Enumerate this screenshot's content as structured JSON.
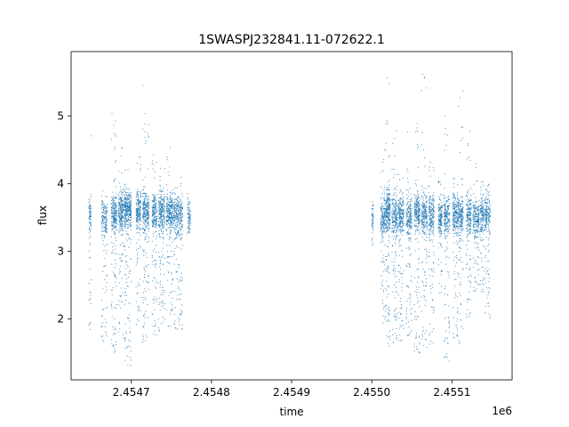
{
  "chart_data": {
    "type": "scatter",
    "title": "1SWASPJ232841.11-072622.1",
    "xlabel": "time",
    "ylabel": "flux",
    "x_offset_label": "1e6",
    "xlim": [
      2454625,
      2455175
    ],
    "ylim": [
      1.1,
      5.95
    ],
    "x_ticks": [
      {
        "value": 2454700,
        "label": "2.4547"
      },
      {
        "value": 2454800,
        "label": "2.4548"
      },
      {
        "value": 2454900,
        "label": "2.4549"
      },
      {
        "value": 2455000,
        "label": "2.4550"
      },
      {
        "value": 2455100,
        "label": "2.4551"
      }
    ],
    "y_ticks": [
      {
        "value": 2,
        "label": "2"
      },
      {
        "value": 3,
        "label": "3"
      },
      {
        "value": 4,
        "label": "4"
      },
      {
        "value": 5,
        "label": "5"
      }
    ],
    "grid": false,
    "marker_color": "#1f77b4",
    "series": [
      {
        "observation_groups": [
          {
            "x_start": 2454647,
            "x_end": 2454650,
            "y_mean": 3.52,
            "y_lo": 1.75,
            "y_hi": 4.75,
            "count": 90
          },
          {
            "x_start": 2454663,
            "x_end": 2454670,
            "y_mean": 3.52,
            "y_lo": 1.6,
            "y_hi": 4.0,
            "count": 180
          },
          {
            "x_start": 2454675,
            "x_end": 2454682,
            "y_mean": 3.55,
            "y_lo": 1.45,
            "y_hi": 5.05,
            "count": 260
          },
          {
            "x_start": 2454684,
            "x_end": 2454690,
            "y_mean": 3.6,
            "y_lo": 1.7,
            "y_hi": 4.6,
            "count": 240
          },
          {
            "x_start": 2454691,
            "x_end": 2454700,
            "y_mean": 3.62,
            "y_lo": 1.3,
            "y_hi": 4.25,
            "count": 380
          },
          {
            "x_start": 2454706,
            "x_end": 2454712,
            "y_mean": 3.6,
            "y_lo": 1.9,
            "y_hi": 4.4,
            "count": 220
          },
          {
            "x_start": 2454714,
            "x_end": 2454722,
            "y_mean": 3.58,
            "y_lo": 1.65,
            "y_hi": 5.45,
            "count": 300
          },
          {
            "x_start": 2454726,
            "x_end": 2454732,
            "y_mean": 3.57,
            "y_lo": 1.75,
            "y_hi": 4.45,
            "count": 220
          },
          {
            "x_start": 2454734,
            "x_end": 2454742,
            "y_mean": 3.58,
            "y_lo": 1.8,
            "y_hi": 4.35,
            "count": 280
          },
          {
            "x_start": 2454744,
            "x_end": 2454752,
            "y_mean": 3.57,
            "y_lo": 1.8,
            "y_hi": 4.6,
            "count": 280
          },
          {
            "x_start": 2454753,
            "x_end": 2454764,
            "y_mean": 3.55,
            "y_lo": 1.8,
            "y_hi": 4.1,
            "count": 320
          },
          {
            "x_start": 2454770,
            "x_end": 2454774,
            "y_mean": 3.55,
            "y_lo": 3.25,
            "y_hi": 4.0,
            "count": 80
          },
          {
            "x_start": 2455000,
            "x_end": 2455002,
            "y_mean": 3.5,
            "y_lo": 3.05,
            "y_hi": 3.9,
            "count": 50
          },
          {
            "x_start": 2455011,
            "x_end": 2455018,
            "y_mean": 3.5,
            "y_lo": 1.9,
            "y_hi": 4.6,
            "count": 220
          },
          {
            "x_start": 2455018,
            "x_end": 2455023,
            "y_mean": 3.62,
            "y_lo": 1.55,
            "y_hi": 5.65,
            "count": 260
          },
          {
            "x_start": 2455025,
            "x_end": 2455032,
            "y_mean": 3.52,
            "y_lo": 1.65,
            "y_hi": 4.8,
            "count": 240
          },
          {
            "x_start": 2455033,
            "x_end": 2455040,
            "y_mean": 3.55,
            "y_lo": 1.65,
            "y_hi": 4.2,
            "count": 240
          },
          {
            "x_start": 2455043,
            "x_end": 2455050,
            "y_mean": 3.5,
            "y_lo": 1.75,
            "y_hi": 4.85,
            "count": 220
          },
          {
            "x_start": 2455053,
            "x_end": 2455060,
            "y_mean": 3.58,
            "y_lo": 1.5,
            "y_hi": 4.95,
            "count": 260
          },
          {
            "x_start": 2455062,
            "x_end": 2455069,
            "y_mean": 3.55,
            "y_lo": 1.55,
            "y_hi": 5.75,
            "count": 240
          },
          {
            "x_start": 2455071,
            "x_end": 2455078,
            "y_mean": 3.55,
            "y_lo": 1.6,
            "y_hi": 4.4,
            "count": 220
          },
          {
            "x_start": 2455083,
            "x_end": 2455088,
            "y_mean": 3.5,
            "y_lo": 2.3,
            "y_hi": 4.15,
            "count": 160
          },
          {
            "x_start": 2455090,
            "x_end": 2455097,
            "y_mean": 3.52,
            "y_lo": 1.35,
            "y_hi": 5.05,
            "count": 220
          },
          {
            "x_start": 2455101,
            "x_end": 2455108,
            "y_mean": 3.55,
            "y_lo": 1.7,
            "y_hi": 4.1,
            "count": 240
          },
          {
            "x_start": 2455108,
            "x_end": 2455114,
            "y_mean": 3.52,
            "y_lo": 1.6,
            "y_hi": 5.5,
            "count": 200
          },
          {
            "x_start": 2455118,
            "x_end": 2455124,
            "y_mean": 3.55,
            "y_lo": 2.0,
            "y_hi": 4.8,
            "count": 200
          },
          {
            "x_start": 2455126,
            "x_end": 2455134,
            "y_mean": 3.5,
            "y_lo": 2.4,
            "y_hi": 4.4,
            "count": 220
          },
          {
            "x_start": 2455135,
            "x_end": 2455140,
            "y_mean": 3.55,
            "y_lo": 2.4,
            "y_hi": 4.1,
            "count": 150
          },
          {
            "x_start": 2455141,
            "x_end": 2455148,
            "y_mean": 3.55,
            "y_lo": 2.0,
            "y_hi": 4.0,
            "count": 200
          }
        ]
      }
    ]
  }
}
